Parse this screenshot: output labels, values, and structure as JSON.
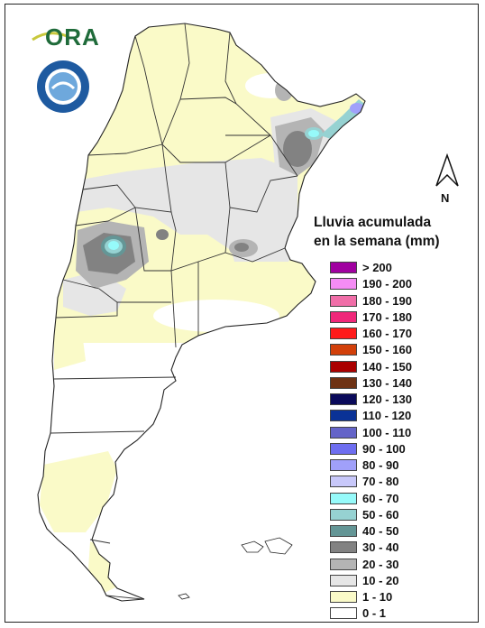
{
  "logo": {
    "text": "ORA",
    "icon": "ora-logo-icon"
  },
  "seal": {
    "icon": "smn-seal-icon"
  },
  "north": {
    "label": "N",
    "icon": "north-arrow-icon"
  },
  "legend": {
    "title_line1": "Lluvia acumulada",
    "title_line2": "en la semana (mm)",
    "items": [
      {
        "label": "> 200",
        "color": "#a000a0"
      },
      {
        "label": "190 - 200",
        "color": "#f58cf5"
      },
      {
        "label": "180 - 190",
        "color": "#f06ea8"
      },
      {
        "label": "170 - 180",
        "color": "#f0287a"
      },
      {
        "label": "160 - 170",
        "color": "#ff1a1a"
      },
      {
        "label": "150 - 160",
        "color": "#d2400a"
      },
      {
        "label": "140 - 150",
        "color": "#aa0000"
      },
      {
        "label": "130 - 140",
        "color": "#6e3214"
      },
      {
        "label": "120 - 130",
        "color": "#0a0a5a"
      },
      {
        "label": "110 - 120",
        "color": "#0a3296"
      },
      {
        "label": "100 - 110",
        "color": "#6464c8"
      },
      {
        "label": "90 - 100",
        "color": "#6e6ef0"
      },
      {
        "label": "80 - 90",
        "color": "#a0a0fa"
      },
      {
        "label": "70 - 80",
        "color": "#c8c8fa"
      },
      {
        "label": "60 - 70",
        "color": "#96fafa"
      },
      {
        "label": "50 - 60",
        "color": "#96d2d2"
      },
      {
        "label": "40 - 50",
        "color": "#649696"
      },
      {
        "label": "30 - 40",
        "color": "#828282"
      },
      {
        "label": "20 - 30",
        "color": "#b4b4b4"
      },
      {
        "label": "10 - 20",
        "color": "#e6e6e6"
      },
      {
        "label": "1 - 10",
        "color": "#fafac8"
      },
      {
        "label": "0 - 1",
        "color": "#ffffff"
      }
    ]
  },
  "map": {
    "icon": "argentina-precipitation-map"
  }
}
